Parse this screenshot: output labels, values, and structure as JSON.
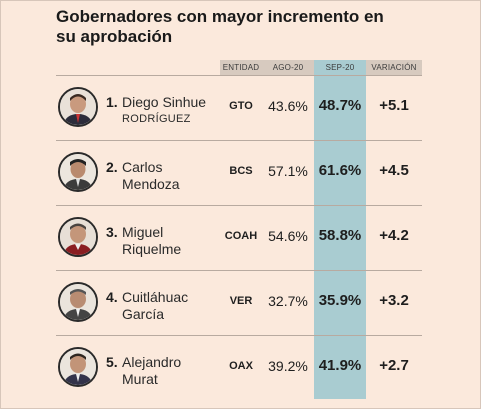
{
  "title": "Gobernadores con mayor incremento en su aprobación",
  "columns": {
    "entidad": "ENTIDAD",
    "ago": "AGO-20",
    "sep": "SEP-20",
    "variacion": "VARIACIÓN"
  },
  "colors": {
    "background": "#fbe9dc",
    "header_band": "#d7cabf",
    "highlight_column": "#a9ccd1"
  },
  "rows": [
    {
      "rank": "1.",
      "name_line1": "Diego Sinhue",
      "name_line2": "Rodríguez",
      "state": "GTO",
      "ago": "43.6%",
      "sep": "48.7%",
      "var": "+5.1",
      "avatar_icon": "man-portrait-icon"
    },
    {
      "rank": "2.",
      "name_line1": "Carlos",
      "name_line2": "Mendoza",
      "state": "BCS",
      "ago": "57.1%",
      "sep": "61.6%",
      "var": "+4.5",
      "avatar_icon": "man-portrait-icon"
    },
    {
      "rank": "3.",
      "name_line1": "Miguel",
      "name_line2": "Riquelme",
      "state": "COAH",
      "ago": "54.6%",
      "sep": "58.8%",
      "var": "+4.2",
      "avatar_icon": "man-portrait-icon"
    },
    {
      "rank": "4.",
      "name_line1": "Cuitláhuac",
      "name_line2": "García",
      "state": "VER",
      "ago": "32.7%",
      "sep": "35.9%",
      "var": "+3.2",
      "avatar_icon": "man-portrait-icon"
    },
    {
      "rank": "5.",
      "name_line1": "Alejandro",
      "name_line2": "Murat",
      "state": "OAX",
      "ago": "39.2%",
      "sep": "41.9%",
      "var": "+2.7",
      "avatar_icon": "man-portrait-icon"
    }
  ]
}
